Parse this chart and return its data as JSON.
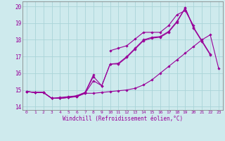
{
  "xlabel": "Windchill (Refroidissement éolien,°C)",
  "xlim": [
    -0.5,
    23.5
  ],
  "ylim": [
    13.8,
    20.3
  ],
  "xticks": [
    0,
    1,
    2,
    3,
    4,
    5,
    6,
    7,
    8,
    9,
    10,
    11,
    12,
    13,
    14,
    15,
    16,
    17,
    18,
    19,
    20,
    21,
    22,
    23
  ],
  "yticks": [
    14,
    15,
    16,
    17,
    18,
    19,
    20
  ],
  "bg_color": "#ceeaed",
  "grid_color": "#aad4d8",
  "line_color": "#990099",
  "series": [
    {
      "comment": "slowly rising line - baseline",
      "x": [
        0,
        1,
        2,
        3,
        4,
        5,
        6,
        7,
        8,
        9,
        10,
        11,
        12,
        13,
        14,
        15,
        16,
        17,
        18,
        19,
        20,
        21,
        22,
        23
      ],
      "y": [
        14.9,
        14.85,
        14.85,
        14.5,
        14.5,
        14.55,
        14.6,
        14.8,
        14.8,
        14.85,
        14.9,
        14.95,
        15.0,
        15.1,
        15.3,
        15.6,
        16.0,
        16.4,
        16.8,
        17.2,
        17.6,
        18.0,
        18.3,
        16.3
      ]
    },
    {
      "comment": "mid line 1",
      "x": [
        0,
        1,
        2,
        3,
        4,
        5,
        6,
        7,
        8,
        9,
        10,
        11,
        12,
        13,
        14,
        15,
        16,
        17,
        18,
        19,
        20,
        21,
        22,
        23
      ],
      "y": [
        14.9,
        14.85,
        14.85,
        14.5,
        14.5,
        14.55,
        14.6,
        14.8,
        15.55,
        15.25,
        16.55,
        16.55,
        16.95,
        17.45,
        17.95,
        18.1,
        18.15,
        18.45,
        19.05,
        19.9,
        18.7,
        17.9,
        17.1,
        null
      ]
    },
    {
      "comment": "mid line 2 - very close to mid1",
      "x": [
        0,
        1,
        2,
        3,
        4,
        5,
        6,
        7,
        8,
        9,
        10,
        11,
        12,
        13,
        14,
        15,
        16,
        17,
        18,
        19,
        20,
        21,
        22,
        23
      ],
      "y": [
        14.9,
        14.85,
        14.85,
        14.5,
        14.5,
        14.55,
        14.65,
        14.85,
        15.8,
        15.25,
        16.55,
        16.6,
        17.0,
        17.5,
        18.0,
        18.15,
        18.2,
        18.5,
        19.1,
        19.9,
        18.75,
        17.95,
        17.15,
        null
      ]
    },
    {
      "comment": "top spiky line",
      "x": [
        0,
        1,
        2,
        3,
        4,
        5,
        6,
        7,
        8,
        9,
        10,
        11,
        12,
        13,
        14,
        15,
        16,
        17,
        18,
        19,
        20,
        21,
        22,
        23
      ],
      "y": [
        14.9,
        14.85,
        14.85,
        14.5,
        14.55,
        14.6,
        14.65,
        14.85,
        15.9,
        null,
        17.35,
        17.5,
        17.65,
        18.05,
        18.45,
        18.45,
        18.45,
        18.85,
        19.5,
        19.75,
        18.85,
        null,
        null,
        null
      ]
    }
  ]
}
